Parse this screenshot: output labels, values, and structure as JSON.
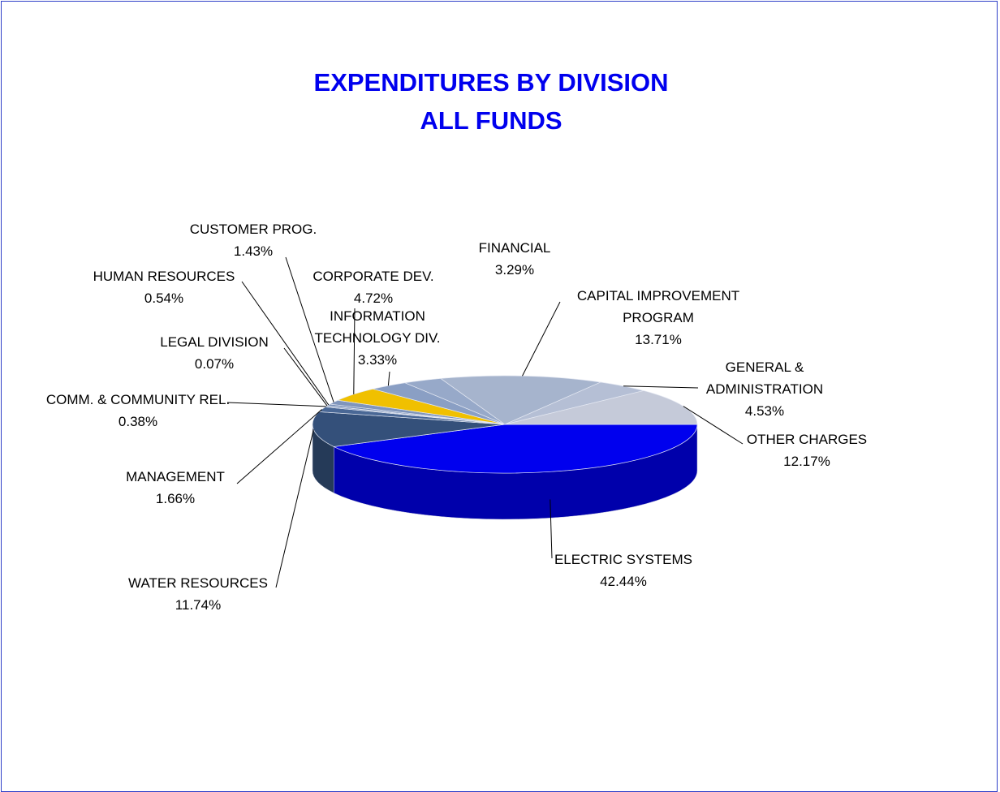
{
  "chart_data": {
    "type": "pie",
    "title": [
      "EXPENDITURES BY DIVISION",
      "ALL FUNDS"
    ],
    "categories": [
      "ELECTRIC SYSTEMS",
      "WATER RESOURCES",
      "MANAGEMENT",
      "COMM. & COMMUNITY REL.",
      "LEGAL DIVISION",
      "HUMAN RESOURCES",
      "CUSTOMER PROG.",
      "CORPORATE DEV.",
      "INFORMATION TECHNOLOGY DIV.",
      "FINANCIAL",
      "CAPITAL IMPROVEMENT PROGRAM",
      "GENERAL & ADMINISTRATION",
      "OTHER CHARGES"
    ],
    "values": [
      42.44,
      11.74,
      1.66,
      0.38,
      0.07,
      0.54,
      1.43,
      4.72,
      3.33,
      3.29,
      13.71,
      4.53,
      12.17
    ],
    "value_labels": [
      "42.44%",
      "11.74%",
      "1.66%",
      "0.38%",
      "0.07%",
      "0.54%",
      "1.43%",
      "4.72%",
      "3.33%",
      "3.29%",
      "13.71%",
      "4.53%",
      "12.17%"
    ],
    "colors": [
      "#0000ee",
      "#34507a",
      "#4a6896",
      "#6b84ad",
      "#7990b6",
      "#6f88b2",
      "#7f95bc",
      "#f0c000",
      "#8a9fc4",
      "#97a9c9",
      "#a6b4cd",
      "#b5bfd5",
      "#c5cad9"
    ]
  }
}
